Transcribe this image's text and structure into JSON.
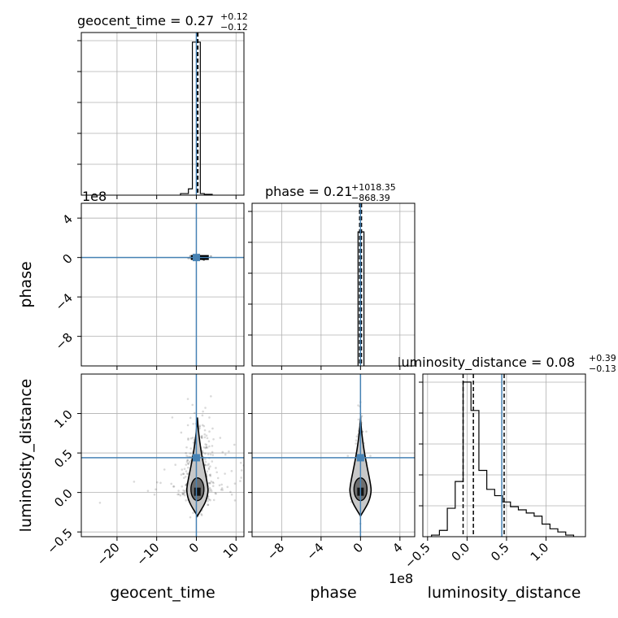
{
  "chart_data": {
    "type": "corner",
    "parameters": [
      "geocent_time",
      "phase",
      "luminosity_distance"
    ],
    "injection_values": {
      "geocent_time": 0.0,
      "phase": 0.0,
      "luminosity_distance": 0.44
    },
    "injection_color": "#4682b4",
    "titles": {
      "geocent_time": {
        "name": "geocent_time",
        "median": "0.27",
        "plus": "+0.12",
        "minus": "−0.12"
      },
      "phase": {
        "name": "phase",
        "median": "0.21",
        "plus": "+1018.35",
        "minus": "−868.39"
      },
      "luminosity_distance": {
        "name": "luminosity_distance",
        "median": "0.08",
        "plus": "+0.39",
        "minus": "−0.13"
      }
    },
    "axis_labels": {
      "x": [
        "geocent_time",
        "phase",
        "luminosity_distance"
      ],
      "y": [
        "phase",
        "luminosity_distance"
      ]
    },
    "ranges": {
      "geocent_time": [
        -29,
        12
      ],
      "phase": [
        -1100000000.0,
        550000000.0
      ],
      "luminosity_distance": [
        -0.56,
        1.5
      ]
    },
    "ticks": {
      "geocent_time": {
        "values": [
          -20,
          -10,
          0,
          10
        ],
        "labels": [
          "−20",
          "−10",
          "0",
          "10"
        ]
      },
      "phase": {
        "values": [
          -800000000.0,
          -400000000.0,
          0,
          400000000.0
        ],
        "labels": [
          "−8",
          "−4",
          "0",
          "4"
        ]
      },
      "luminosity_distance": {
        "values": [
          -0.5,
          0.0,
          0.5,
          1.0
        ],
        "labels": [
          "−0.5",
          "0.0",
          "0.5",
          "1.0"
        ]
      }
    },
    "offset_text": {
      "phase": "1e8"
    },
    "hist1d": {
      "geocent_time": {
        "edges": [
          -4,
          -2,
          -1,
          0,
          1,
          2,
          4
        ],
        "counts": [
          0.01,
          0.04,
          0.97,
          0.97,
          0.01,
          0.005
        ],
        "quantiles": [
          0.15,
          0.27,
          0.39
        ]
      },
      "phase": {
        "edges": [
          -25000000.0,
          35000000.0
        ],
        "counts": [
          0.85
        ],
        "quantiles": [
          -8700000.0,
          0.21,
          10200000.0
        ]
      },
      "luminosity_distance": {
        "edges": [
          -0.45,
          -0.35,
          -0.25,
          -0.15,
          -0.05,
          0.05,
          0.15,
          0.25,
          0.35,
          0.45,
          0.55,
          0.65,
          0.75,
          0.85,
          0.95,
          1.05,
          1.15,
          1.25,
          1.35
        ],
        "counts": [
          0.01,
          0.04,
          0.18,
          0.35,
          0.98,
          0.8,
          0.42,
          0.3,
          0.26,
          0.22,
          0.19,
          0.17,
          0.15,
          0.13,
          0.08,
          0.05,
          0.03,
          0.01
        ],
        "quantiles": [
          -0.05,
          0.08,
          0.47
        ]
      }
    },
    "samples_scatter": {
      "geocent_time_vs_luminosity_distance": {
        "x_center": 0.4,
        "x_spread": 1.6,
        "y_center": 0.08,
        "y_spread": 0.35
      },
      "phase_vs_luminosity_distance": {
        "x_center": 0,
        "x_spread": 10000000.0,
        "y_center": 0.08,
        "y_spread": 0.35
      }
    },
    "grid": true
  }
}
